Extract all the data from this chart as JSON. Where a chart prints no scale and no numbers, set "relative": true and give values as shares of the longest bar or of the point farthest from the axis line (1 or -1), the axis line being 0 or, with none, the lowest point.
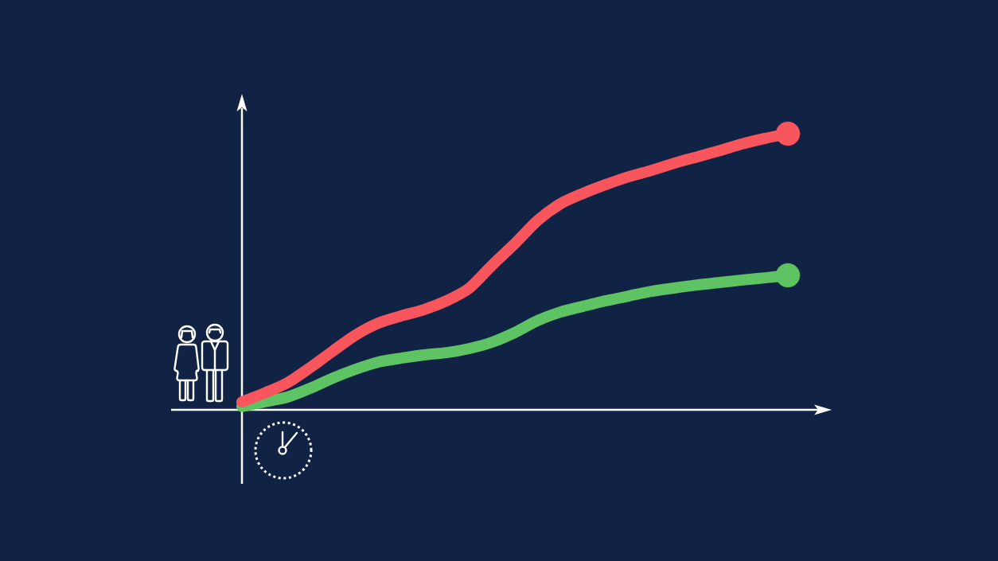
{
  "chart_data": {
    "type": "line",
    "relative": true,
    "categories": [
      null,
      null,
      null,
      null,
      null,
      null,
      null,
      null,
      null,
      null,
      null,
      null,
      null,
      null,
      null,
      null,
      null,
      null,
      null,
      null,
      null,
      null,
      null,
      null,
      null
    ],
    "series": [
      {
        "color": "#f9555d",
        "values": [
          0.029,
          0.061,
          0.098,
          0.153,
          0.213,
          0.271,
          0.314,
          0.34,
          0.363,
          0.395,
          0.441,
          0.524,
          0.602,
          0.686,
          0.746,
          0.784,
          0.816,
          0.844,
          0.867,
          0.893,
          0.916,
          0.939,
          0.963,
          0.983,
          1.0
        ]
      },
      {
        "color": "#5dc363",
        "values": [
          0.012,
          0.029,
          0.046,
          0.078,
          0.115,
          0.147,
          0.173,
          0.187,
          0.199,
          0.207,
          0.222,
          0.245,
          0.28,
          0.323,
          0.354,
          0.375,
          0.395,
          0.412,
          0.429,
          0.441,
          0.452,
          0.461,
          0.47,
          0.478,
          0.487
        ]
      }
    ],
    "line_style": "solid"
  }
}
